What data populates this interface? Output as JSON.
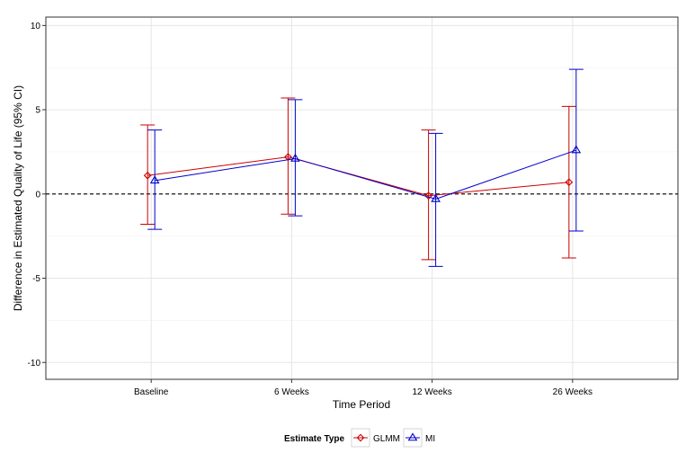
{
  "chart_data": {
    "type": "line",
    "title": "",
    "xlabel": "Time Period",
    "ylabel": "Difference in Estimated Quality of Life (95% CI)",
    "categories": [
      "Baseline",
      "6 Weeks",
      "12 Weeks",
      "26 Weeks"
    ],
    "ylim": [
      -11,
      10.5
    ],
    "yticks": [
      -10,
      -5,
      0,
      5,
      10
    ],
    "ytick_labels": [
      "-10",
      "-5",
      "0",
      "5",
      "10"
    ],
    "grid": true,
    "reference_line": {
      "y": 0,
      "style": "dashed",
      "color": "#000000"
    },
    "legend": {
      "title": "Estimate Type",
      "position": "bottom"
    },
    "series": [
      {
        "name": "GLMM",
        "color": "#cc0000",
        "marker": "diamond",
        "values": [
          1.1,
          2.2,
          -0.1,
          0.7
        ],
        "ci_low": [
          -1.8,
          -1.2,
          -3.9,
          -3.8
        ],
        "ci_high": [
          4.1,
          5.7,
          3.8,
          5.2
        ]
      },
      {
        "name": "MI",
        "color": "#0000cc",
        "marker": "triangle",
        "values": [
          0.8,
          2.1,
          -0.3,
          2.6
        ],
        "ci_low": [
          -2.1,
          -1.3,
          -4.3,
          -2.2
        ],
        "ci_high": [
          3.8,
          5.6,
          3.6,
          7.4
        ]
      }
    ]
  }
}
